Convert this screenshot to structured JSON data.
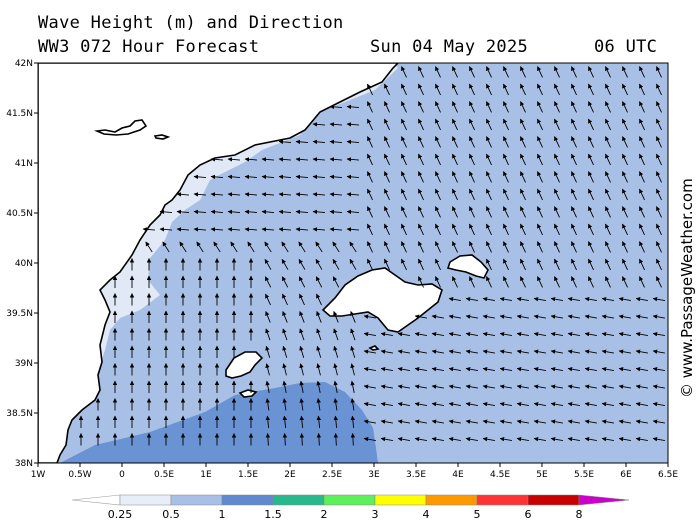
{
  "header": {
    "title_line1": "Wave Height (m) and Direction",
    "title_line2": "WW3 072 Hour Forecast",
    "date": "Sun 04 May 2025",
    "time": "06 UTC"
  },
  "credit": "© www.PassageWeather.com",
  "map_view": {
    "lon_range": [
      -1,
      6.5
    ],
    "lat_range": [
      38,
      42
    ]
  },
  "axes": {
    "lat_ticks": [
      {
        "value": 42,
        "label": "42N"
      },
      {
        "value": 41.5,
        "label": "41.5N"
      },
      {
        "value": 41,
        "label": "41N"
      },
      {
        "value": 40.5,
        "label": "40.5N"
      },
      {
        "value": 40,
        "label": "40N"
      },
      {
        "value": 39.5,
        "label": "39.5N"
      },
      {
        "value": 39,
        "label": "39N"
      },
      {
        "value": 38.5,
        "label": "38.5N"
      },
      {
        "value": 38,
        "label": "38N"
      }
    ],
    "lon_ticks": [
      {
        "value": -1,
        "label": "1W"
      },
      {
        "value": -0.5,
        "label": "0.5W"
      },
      {
        "value": 0,
        "label": "0"
      },
      {
        "value": 0.5,
        "label": "0.5E"
      },
      {
        "value": 1,
        "label": "1E"
      },
      {
        "value": 1.5,
        "label": "1.5E"
      },
      {
        "value": 2,
        "label": "2E"
      },
      {
        "value": 2.5,
        "label": "2.5E"
      },
      {
        "value": 3,
        "label": "3E"
      },
      {
        "value": 3.5,
        "label": "3.5E"
      },
      {
        "value": 4,
        "label": "4E"
      },
      {
        "value": 4.5,
        "label": "4.5E"
      },
      {
        "value": 5,
        "label": "5E"
      },
      {
        "value": 5.5,
        "label": "5.5E"
      },
      {
        "value": 6,
        "label": "6E"
      },
      {
        "value": 6.5,
        "label": "6.5E"
      }
    ]
  },
  "legend": {
    "bins": [
      {
        "label": "0.25",
        "color": "#e8eef8"
      },
      {
        "label": "0.5",
        "color": "#a9c0e6"
      },
      {
        "label": "1",
        "color": "#5f8ad0"
      },
      {
        "label": "1.5",
        "color": "#28b88c"
      },
      {
        "label": "2",
        "color": "#5cf05a"
      },
      {
        "label": "3",
        "color": "#ffff00"
      },
      {
        "label": "4",
        "color": "#ff9900"
      },
      {
        "label": "5",
        "color": "#ff3333"
      },
      {
        "label": "6",
        "color": "#c80000"
      },
      {
        "label": "8",
        "color": "#cc00cc"
      }
    ]
  },
  "colors": {
    "land": "#ffffff",
    "wave_low": "#e1e9f6",
    "wave_mid": "#a9c0e6",
    "wave_high": "#6a93d4",
    "coast": "#000000"
  }
}
